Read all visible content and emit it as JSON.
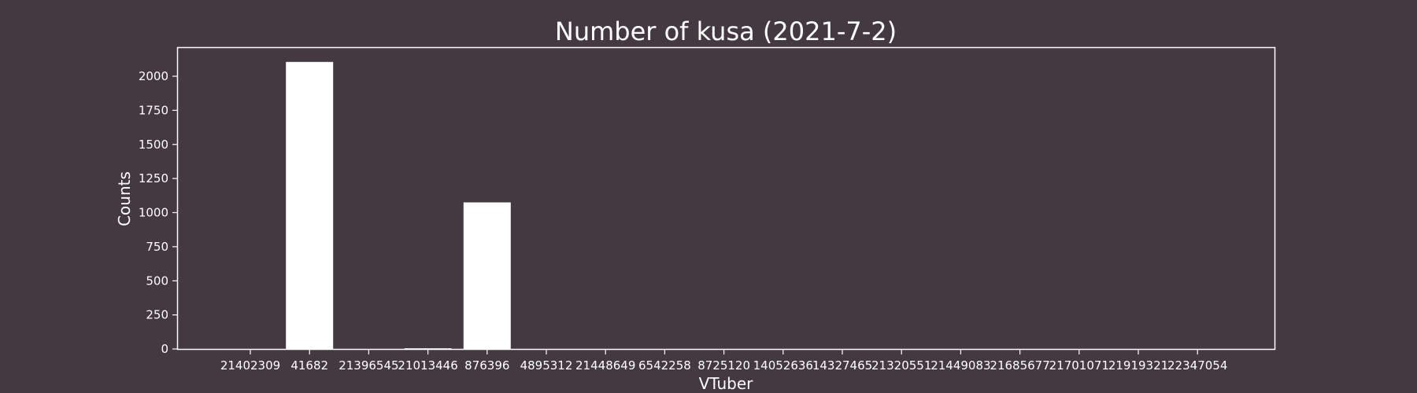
{
  "chart_data": {
    "type": "bar",
    "title": "Number of kusa (2021-7-2)",
    "xlabel": "VTuber",
    "ylabel": "Counts",
    "ylim": [
      0,
      2200
    ],
    "yticks": [
      0,
      250,
      500,
      750,
      1000,
      1250,
      1500,
      1750,
      2000
    ],
    "categories": [
      "21402309",
      "41682",
      "21396545",
      "21013446",
      "876396",
      "4895312",
      "21448649",
      "6542258",
      "8725120",
      "14052636",
      "14327465",
      "21320551",
      "21449083",
      "21685677",
      "21701071",
      "21919321",
      "22347054"
    ],
    "values": [
      0,
      2105,
      0,
      5,
      1075,
      0,
      0,
      0,
      0,
      0,
      0,
      0,
      0,
      0,
      0,
      0,
      0
    ],
    "grid": false,
    "colors": {
      "background": "#443941",
      "bar": "#ffffff",
      "text": "#ffffff",
      "axes": "#ffffff"
    }
  }
}
